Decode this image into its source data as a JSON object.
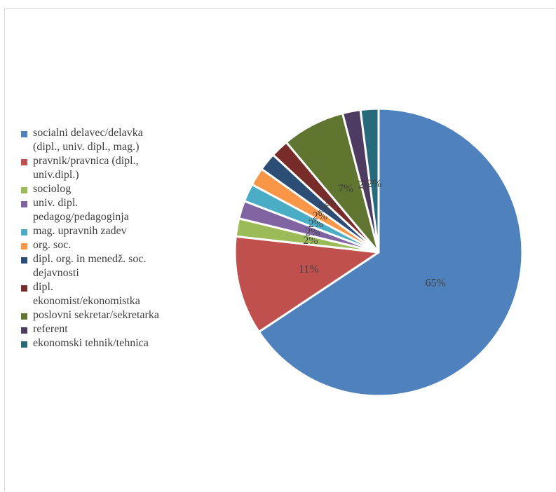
{
  "chart_data": {
    "type": "pie",
    "title": "",
    "legend_position": "left",
    "series": [
      {
        "label": "socialni delavec/delavka\n(dipl., univ. dipl., mag.)",
        "value": 65,
        "display": "65%",
        "color": "#4F81BD"
      },
      {
        "label": "pravnik/pravnica (dipl.,\nuniv.dipl.)",
        "value": 11,
        "display": "11%",
        "color": "#C0504D"
      },
      {
        "label": "sociolog",
        "value": 2,
        "display": "2%",
        "color": "#9BBB59"
      },
      {
        "label": "univ. dipl.\npedagog/pedagoginja",
        "value": 2,
        "display": "2%",
        "color": "#8064A2"
      },
      {
        "label": "mag. upravnih zadev",
        "value": 2,
        "display": "2%",
        "color": "#4BACC6"
      },
      {
        "label": "org. soc.",
        "value": 2,
        "display": "2%",
        "color": "#F79646"
      },
      {
        "label": "dipl. org. in menedž. soc.\ndejavnosti",
        "value": 2,
        "display": "2%",
        "color": "#2C4D75"
      },
      {
        "label": "dipl.\nekonomist/ekonomistka",
        "value": 2,
        "display": "2%",
        "color": "#772C2A"
      },
      {
        "label": "poslovni sekretar/sekretarka",
        "value": 7,
        "display": "7%",
        "color": "#5F7530"
      },
      {
        "label": "referent",
        "value": 2,
        "display": "2%",
        "color": "#4D3B62"
      },
      {
        "label": "ekonomski tehnik/tehnica",
        "value": 2,
        "display": "2%",
        "color": "#276A7C"
      }
    ]
  }
}
